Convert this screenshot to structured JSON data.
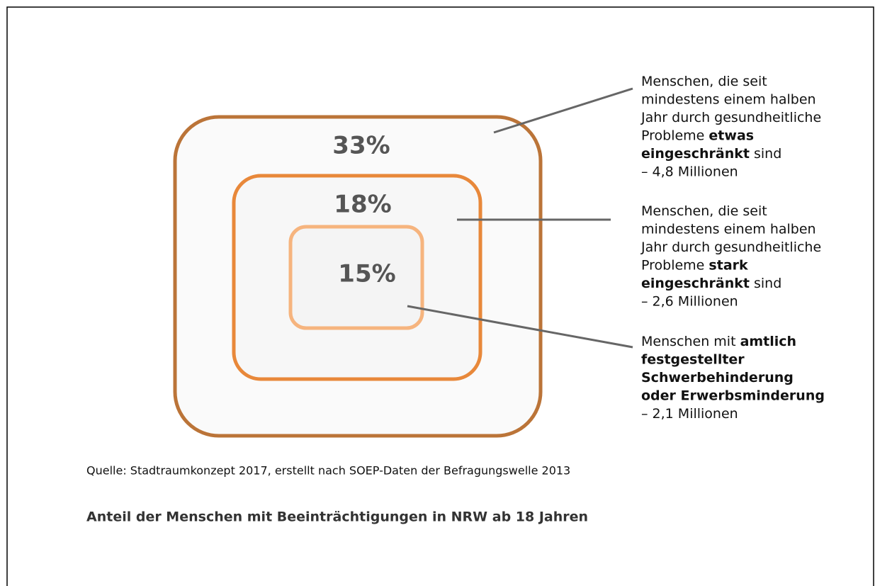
{
  "diagram": {
    "boxes": [
      {
        "label": "33%"
      },
      {
        "label": "18%"
      },
      {
        "label": "15%"
      }
    ],
    "annotations": [
      {
        "lines": [
          [
            {
              "text": "Menschen, die seit",
              "bold": false
            }
          ],
          [
            {
              "text": "mindestens einem halben",
              "bold": false
            }
          ],
          [
            {
              "text": "Jahr durch gesundheitliche",
              "bold": false
            }
          ],
          [
            {
              "text": "Probleme ",
              "bold": false
            },
            {
              "text": "etwas",
              "bold": true
            }
          ],
          [
            {
              "text": "eingeschränkt",
              "bold": true
            },
            {
              "text": " sind",
              "bold": false
            }
          ],
          [
            {
              "text": "– 4,8 Millionen",
              "bold": false
            }
          ]
        ]
      },
      {
        "lines": [
          [
            {
              "text": "Menschen, die seit",
              "bold": false
            }
          ],
          [
            {
              "text": "mindestens einem halben",
              "bold": false
            }
          ],
          [
            {
              "text": "Jahr durch gesundheitliche",
              "bold": false
            }
          ],
          [
            {
              "text": "Probleme ",
              "bold": false
            },
            {
              "text": "stark",
              "bold": true
            }
          ],
          [
            {
              "text": "eingeschränkt",
              "bold": true
            },
            {
              "text": " sind",
              "bold": false
            }
          ],
          [
            {
              "text": "– 2,6 Millionen",
              "bold": false
            }
          ]
        ]
      },
      {
        "lines": [
          [
            {
              "text": "Menschen mit ",
              "bold": false
            },
            {
              "text": "amtlich",
              "bold": true
            }
          ],
          [
            {
              "text": "festgestellter",
              "bold": true
            }
          ],
          [
            {
              "text": "Schwerbehinderung",
              "bold": true
            }
          ],
          [
            {
              "text": "oder Erwerbsminderung",
              "bold": true
            }
          ],
          [
            {
              "text": "– 2,1 Millionen",
              "bold": false
            }
          ]
        ]
      }
    ],
    "source": "Quelle:  Stadtraumkonzept 2017, erstellt nach SOEP-Daten der Befragungswelle 2013",
    "caption": "Anteil der Menschen mit Beeinträchtigungen in NRW ab 18 Jahren"
  }
}
